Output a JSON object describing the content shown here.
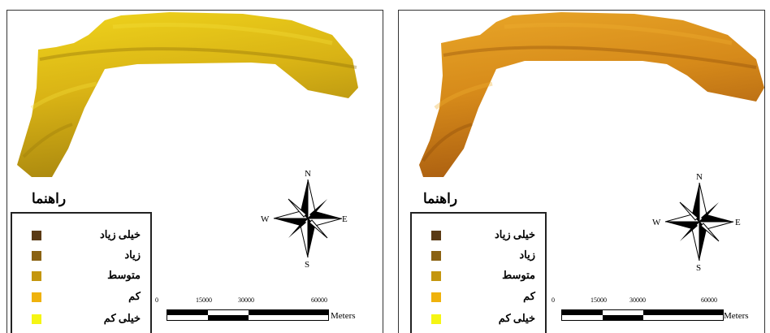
{
  "panels": [
    {
      "legend": {
        "title": "راهنما",
        "items": [
          {
            "label": "خیلی زیاد",
            "color": "#5a3a14"
          },
          {
            "label": "زیاد",
            "color": "#8a6212"
          },
          {
            "label": "متوسط",
            "color": "#c4960e"
          },
          {
            "label": "کم",
            "color": "#efb20c"
          },
          {
            "label": "خیلی کم",
            "color": "#f5f514"
          }
        ]
      },
      "map_colors": {
        "base": "#d9b315",
        "dark": "#a8860f",
        "light": "#f0d51c"
      },
      "scale": {
        "ticks": [
          "0",
          "15000",
          "30000",
          "60000"
        ],
        "unit": "Meters"
      },
      "compass": {
        "n": "N",
        "s": "S",
        "e": "E",
        "w": "W"
      }
    },
    {
      "legend": {
        "title": "راهنما",
        "items": [
          {
            "label": "خیلی زیاد",
            "color": "#5a3a14"
          },
          {
            "label": "زیاد",
            "color": "#8a6212"
          },
          {
            "label": "متوسط",
            "color": "#c4960e"
          },
          {
            "label": "کم",
            "color": "#efb20c"
          },
          {
            "label": "خیلی کم",
            "color": "#f5f514"
          }
        ]
      },
      "map_colors": {
        "base": "#d68a1a",
        "dark": "#a85c10",
        "light": "#e9a728"
      },
      "scale": {
        "ticks": [
          "0",
          "15000",
          "30000",
          "60000"
        ],
        "unit": "Meters"
      },
      "compass": {
        "n": "N",
        "s": "S",
        "e": "E",
        "w": "W"
      }
    }
  ]
}
